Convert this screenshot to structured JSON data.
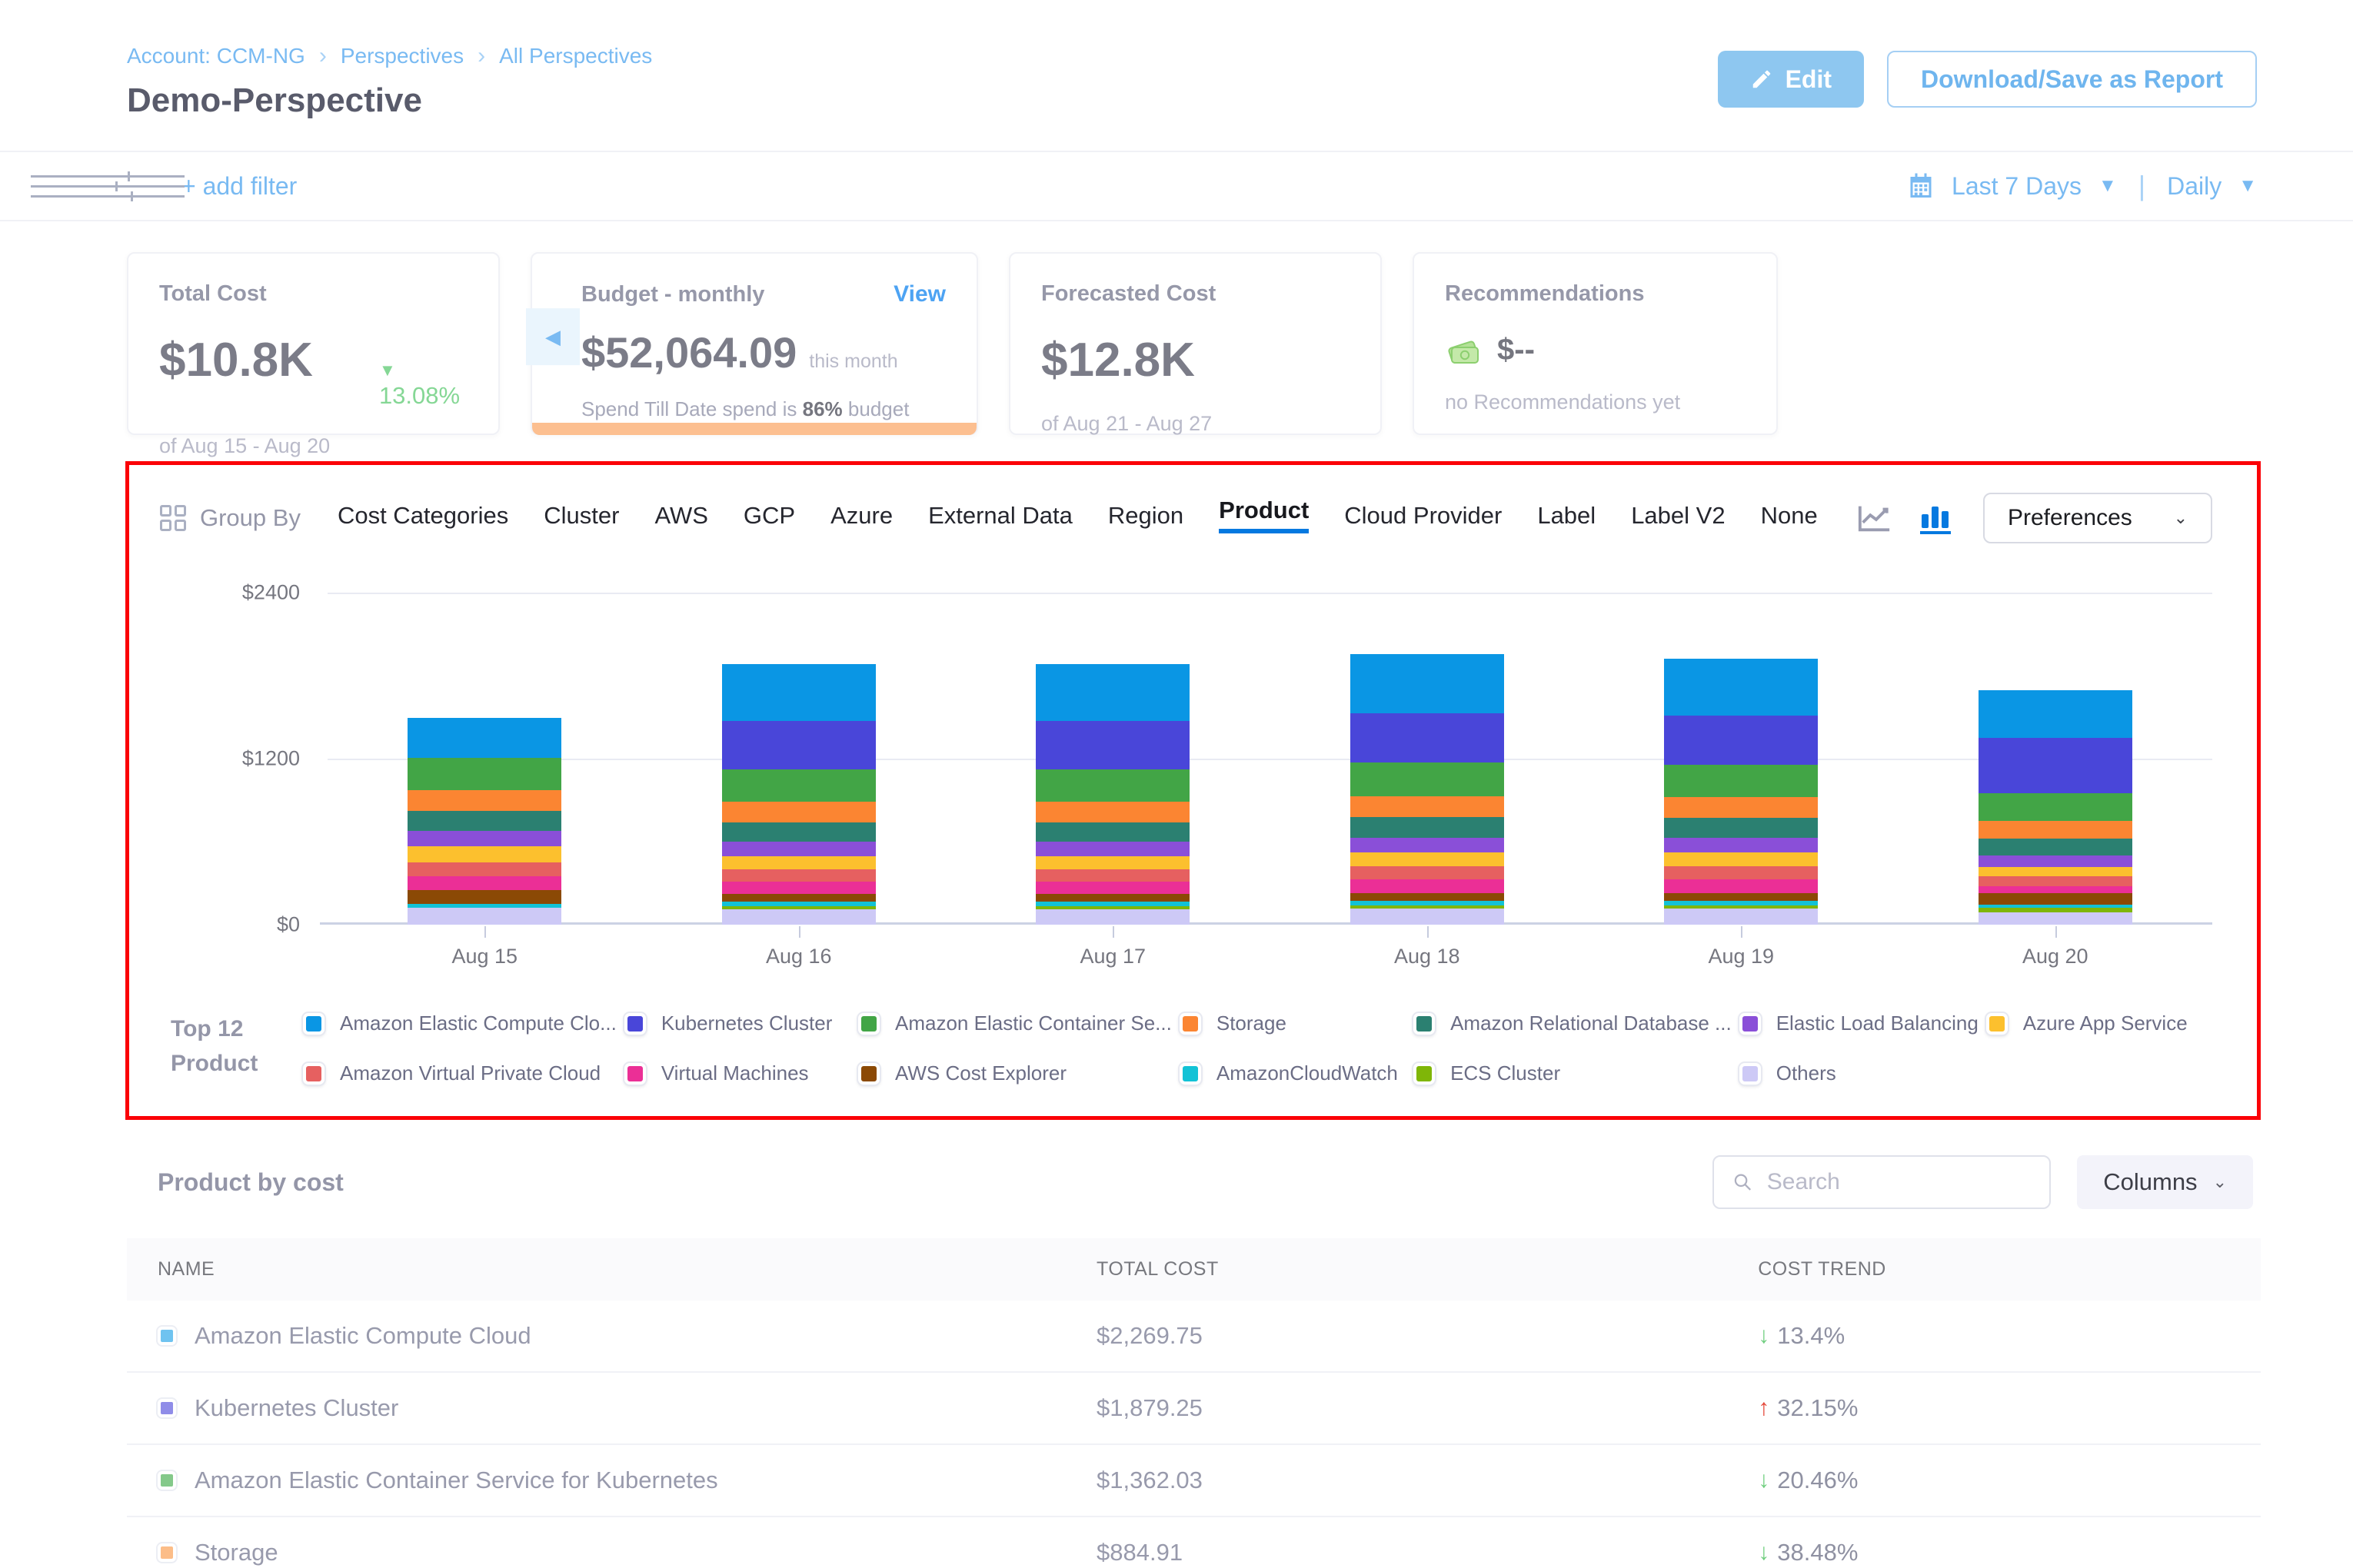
{
  "breadcrumb": {
    "account": "Account: CCM-NG",
    "perspectives": "Perspectives",
    "all_perspectives": "All Perspectives"
  },
  "header": {
    "title": "Demo-Perspective",
    "edit_label": "Edit",
    "download_label": "Download/Save as Report"
  },
  "filter_bar": {
    "add_filter": "+ add filter",
    "date_range": "Last 7 Days",
    "granularity": "Daily"
  },
  "cards": {
    "total_cost": {
      "label": "Total Cost",
      "value": "$10.8K",
      "trend": "13.08%",
      "period": "of Aug 15 - Aug 20"
    },
    "budget": {
      "label": "Budget - monthly",
      "view": "View",
      "value": "$52,064.09",
      "suffix": "this month",
      "spend_prefix": "Spend Till Date spend is",
      "spend_pct": "86%",
      "spend_suffix": "budget"
    },
    "forecast": {
      "label": "Forecasted Cost",
      "value": "$12.8K",
      "period": "of Aug 21 - Aug 27"
    },
    "recommendations": {
      "label": "Recommendations",
      "value": "$--",
      "note": "no Recommendations yet"
    }
  },
  "group_by": {
    "label": "Group By",
    "tabs": [
      "Cost Categories",
      "Cluster",
      "AWS",
      "GCP",
      "Azure",
      "External Data",
      "Region",
      "Product",
      "Cloud Provider",
      "Label",
      "Label V2",
      "None"
    ],
    "active_tab": "Product",
    "preferences_label": "Preferences"
  },
  "chart_data": {
    "type": "bar",
    "stacked": true,
    "title": "Cost by Product (daily stacked)",
    "categories": [
      "Aug 15",
      "Aug 16",
      "Aug 17",
      "Aug 18",
      "Aug 19",
      "Aug 20"
    ],
    "y_ticks": [
      "$2400",
      "$1200",
      "$0"
    ],
    "ylim": [
      0,
      2400
    ],
    "grid": true,
    "legend_position": "bottom",
    "series": [
      {
        "name": "Amazon Elastic Compute Cloud",
        "color": "#0a96e4",
        "values": [
          290,
          410,
          410,
          425,
          415,
          345
        ]
      },
      {
        "name": "Kubernetes Cluster",
        "color": "#4946d9",
        "values": [
          0,
          355,
          355,
          360,
          355,
          400
        ]
      },
      {
        "name": "Amazon Elastic Container Service for Kubernetes",
        "color": "#42a546",
        "values": [
          235,
          230,
          230,
          240,
          235,
          200
        ]
      },
      {
        "name": "Storage",
        "color": "#fb8532",
        "values": [
          150,
          150,
          150,
          155,
          150,
          125
        ]
      },
      {
        "name": "Amazon Relational Database Service",
        "color": "#2b8071",
        "values": [
          140,
          140,
          140,
          145,
          140,
          125
        ]
      },
      {
        "name": "Elastic Load Balancing",
        "color": "#8a4fd8",
        "values": [
          115,
          105,
          105,
          110,
          110,
          85
        ]
      },
      {
        "name": "Azure App Service",
        "color": "#fcc02e",
        "values": [
          115,
          95,
          95,
          100,
          100,
          65
        ]
      },
      {
        "name": "Amazon Virtual Private Cloud",
        "color": "#e66060",
        "values": [
          100,
          90,
          90,
          95,
          95,
          70
        ]
      },
      {
        "name": "Virtual Machines",
        "color": "#eb2f96",
        "values": [
          100,
          90,
          90,
          95,
          95,
          50
        ]
      },
      {
        "name": "AWS Cost Explorer",
        "color": "#8b4905",
        "values": [
          100,
          55,
          55,
          60,
          60,
          85
        ]
      },
      {
        "name": "AmazonCloudWatch",
        "color": "#12c2d6",
        "values": [
          30,
          30,
          30,
          30,
          30,
          25
        ]
      },
      {
        "name": "ECS Cluster",
        "color": "#7fb608",
        "values": [
          0,
          25,
          25,
          25,
          25,
          30
        ]
      },
      {
        "name": "Others",
        "color": "#cdc9f6",
        "values": [
          120,
          110,
          110,
          115,
          115,
          90
        ]
      }
    ]
  },
  "legend": {
    "title_line1": "Top 12",
    "title_line2": "Product",
    "items": [
      {
        "label": "Amazon Elastic Compute Clo...",
        "color": "#0a96e4"
      },
      {
        "label": "Kubernetes Cluster",
        "color": "#4946d9"
      },
      {
        "label": "Amazon Elastic Container Se...",
        "color": "#42a546"
      },
      {
        "label": "Storage",
        "color": "#fb8532"
      },
      {
        "label": "Amazon Relational Database ...",
        "color": "#2b8071"
      },
      {
        "label": "Elastic Load Balancing",
        "color": "#8a4fd8"
      },
      {
        "label": "Azure App Service",
        "color": "#fcc02e"
      },
      {
        "label": "Amazon Virtual Private Cloud",
        "color": "#e66060"
      },
      {
        "label": "Virtual Machines",
        "color": "#eb2f96"
      },
      {
        "label": "AWS Cost Explorer",
        "color": "#8b4905"
      },
      {
        "label": "AmazonCloudWatch",
        "color": "#12c2d6"
      },
      {
        "label": "ECS Cluster",
        "color": "#7fb608"
      },
      {
        "label": "Others",
        "color": "#cdc9f6"
      }
    ]
  },
  "table": {
    "title": "Product by cost",
    "search_placeholder": "Search",
    "columns_label": "Columns",
    "headers": [
      "NAME",
      "TOTAL COST",
      "COST TREND"
    ],
    "rows": [
      {
        "name": "Amazon Elastic Compute Cloud",
        "color": "#6fc3f0",
        "total": "$2,269.75",
        "trend": "13.4%",
        "direction": "down"
      },
      {
        "name": "Kubernetes Cluster",
        "color": "#8f8ce8",
        "total": "$1,879.25",
        "trend": "32.15%",
        "direction": "up"
      },
      {
        "name": "Amazon Elastic Container Service for Kubernetes",
        "color": "#84c98a",
        "total": "$1,362.03",
        "trend": "20.46%",
        "direction": "down"
      },
      {
        "name": "Storage",
        "color": "#fcbd88",
        "total": "$884.91",
        "trend": "38.48%",
        "direction": "down"
      }
    ]
  }
}
